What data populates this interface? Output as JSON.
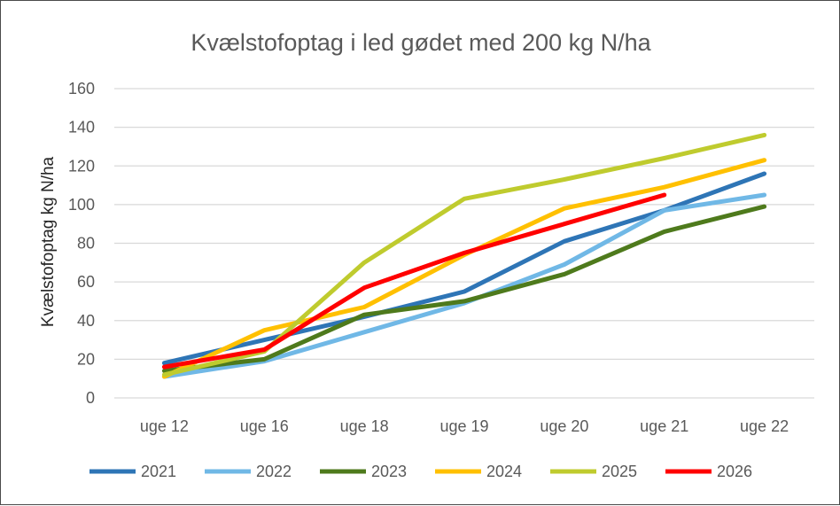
{
  "chart_data": {
    "type": "line",
    "title": "Kvælstofoptag i led gødet med 200 kg N/ha",
    "xlabel": "",
    "ylabel": "Kvælstofoptag kg N/ha",
    "ylim": [
      0,
      160
    ],
    "yticks": [
      0,
      20,
      40,
      60,
      80,
      100,
      120,
      140,
      160
    ],
    "grid": true,
    "legend_position": "bottom",
    "categories": [
      "uge 12",
      "uge 16",
      "uge 18",
      "uge 19",
      "uge 20",
      "uge 21",
      "uge 22"
    ],
    "series": [
      {
        "name": "2021",
        "color": "#2E75B6",
        "values": [
          18,
          30,
          42,
          55,
          81,
          97,
          116
        ]
      },
      {
        "name": "2022",
        "color": "#70B8E6",
        "values": [
          11,
          19,
          34,
          49,
          69,
          97,
          105
        ]
      },
      {
        "name": "2023",
        "color": "#4E7A1C",
        "values": [
          14,
          20,
          43,
          50,
          64,
          86,
          99
        ]
      },
      {
        "name": "2024",
        "color": "#FFC000",
        "values": [
          11,
          35,
          47,
          74,
          98,
          109,
          123
        ]
      },
      {
        "name": "2025",
        "color": "#BFCB2E",
        "values": [
          12,
          24,
          70,
          103,
          113,
          124,
          136
        ]
      },
      {
        "name": "2026",
        "color": "#FF0000",
        "values": [
          16,
          25,
          57,
          75,
          90,
          105,
          null
        ]
      }
    ]
  }
}
